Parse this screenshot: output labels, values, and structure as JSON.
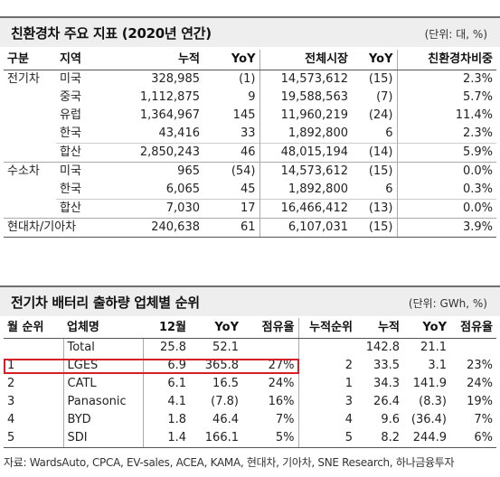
{
  "table1": {
    "title": "친환경차 주요 지표 (2020년 연간)",
    "unit": "(단위: 대, %)",
    "headers": [
      "구분",
      "지역",
      "누적",
      "YoY",
      "전체시장",
      "YoY",
      "친환경차비중"
    ],
    "rows": [
      {
        "group": "전기차",
        "region": "미국",
        "cum": "328,985",
        "yoy": "(1)",
        "market": "14,573,612",
        "myoy": "(15)",
        "share": "2.3%"
      },
      {
        "group": "",
        "region": "중국",
        "cum": "1,112,875",
        "yoy": "9",
        "market": "19,588,563",
        "myoy": "(7)",
        "share": "5.7%"
      },
      {
        "group": "",
        "region": "유럽",
        "cum": "1,364,967",
        "yoy": "145",
        "market": "11,960,219",
        "myoy": "(24)",
        "share": "11.4%"
      },
      {
        "group": "",
        "region": "한국",
        "cum": "43,416",
        "yoy": "33",
        "market": "1,892,800",
        "myoy": "6",
        "share": "2.3%"
      },
      {
        "group": "",
        "region": "합산",
        "cum": "2,850,243",
        "yoy": "46",
        "market": "48,015,194",
        "myoy": "(14)",
        "share": "5.9%"
      },
      {
        "group": "수소차",
        "region": "미국",
        "cum": "965",
        "yoy": "(54)",
        "market": "14,573,612",
        "myoy": "(15)",
        "share": "0.0%"
      },
      {
        "group": "",
        "region": "한국",
        "cum": "6,065",
        "yoy": "45",
        "market": "1,892,800",
        "myoy": "6",
        "share": "0.3%"
      },
      {
        "group": "",
        "region": "합산",
        "cum": "7,030",
        "yoy": "17",
        "market": "16,466,412",
        "myoy": "(13)",
        "share": "0.0%"
      },
      {
        "group": "현대차/기아차",
        "region": "",
        "cum": "240,638",
        "yoy": "61",
        "market": "6,107,031",
        "myoy": "(15)",
        "share": "3.9%"
      }
    ]
  },
  "table2": {
    "title": "전기차 배터리 출하량 업체별 순위",
    "unit": "(단위: GWh, %)",
    "headers": [
      "월 순위",
      "업체명",
      "12월",
      "YoY",
      "점유율",
      "누적순위",
      "누적",
      "YoY",
      "점유율"
    ],
    "rows": [
      {
        "rank": "",
        "name": "Total",
        "m12": "25.8",
        "yoy": "52.1",
        "share": "",
        "crank": "",
        "cum": "142.8",
        "cyoy": "21.1",
        "cshare": ""
      },
      {
        "rank": "1",
        "name": "LGES",
        "m12": "6.9",
        "yoy": "365.8",
        "share": "27%",
        "crank": "2",
        "cum": "33.5",
        "cyoy": "3.1",
        "cshare": "23%"
      },
      {
        "rank": "2",
        "name": "CATL",
        "m12": "6.1",
        "yoy": "16.5",
        "share": "24%",
        "crank": "1",
        "cum": "34.3",
        "cyoy": "141.9",
        "cshare": "24%"
      },
      {
        "rank": "3",
        "name": "Panasonic",
        "m12": "4.1",
        "yoy": "(7.8)",
        "share": "16%",
        "crank": "3",
        "cum": "26.4",
        "cyoy": "(8.3)",
        "cshare": "19%"
      },
      {
        "rank": "4",
        "name": "BYD",
        "m12": "1.8",
        "yoy": "46.4",
        "share": "7%",
        "crank": "4",
        "cum": "9.6",
        "cyoy": "(36.4)",
        "cshare": "7%"
      },
      {
        "rank": "5",
        "name": "SDI",
        "m12": "1.4",
        "yoy": "166.1",
        "share": "5%",
        "crank": "5",
        "cum": "8.2",
        "cyoy": "244.9",
        "cshare": "6%"
      }
    ]
  },
  "source": "자료: WardsAuto, CPCA, EV-sales, ACEA, KAMA, 현대차, 기아차, SNE Research, 하나금융투자",
  "colors": {
    "highlight": "#d61f26",
    "title_bg": "#eeeeee"
  }
}
